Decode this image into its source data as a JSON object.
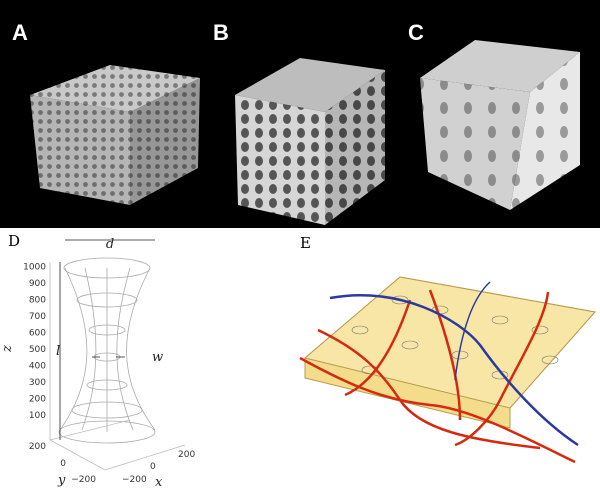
{
  "panels": {
    "a": {
      "label": "A"
    },
    "b": {
      "label": "B"
    },
    "c": {
      "label": "C"
    },
    "d": {
      "label": "D",
      "axis_z": "z",
      "axis_y": "y",
      "axis_x": "x",
      "dim_d": "d",
      "dim_l": "l",
      "dim_w": "w",
      "z_ticks": [
        "100",
        "200",
        "300",
        "400",
        "500",
        "600",
        "700",
        "800",
        "900",
        "1000"
      ],
      "y_ticks": [
        "200",
        "0",
        "−200"
      ],
      "x_ticks": [
        "−200",
        "0",
        "200"
      ]
    },
    "e": {
      "label": "E"
    }
  }
}
